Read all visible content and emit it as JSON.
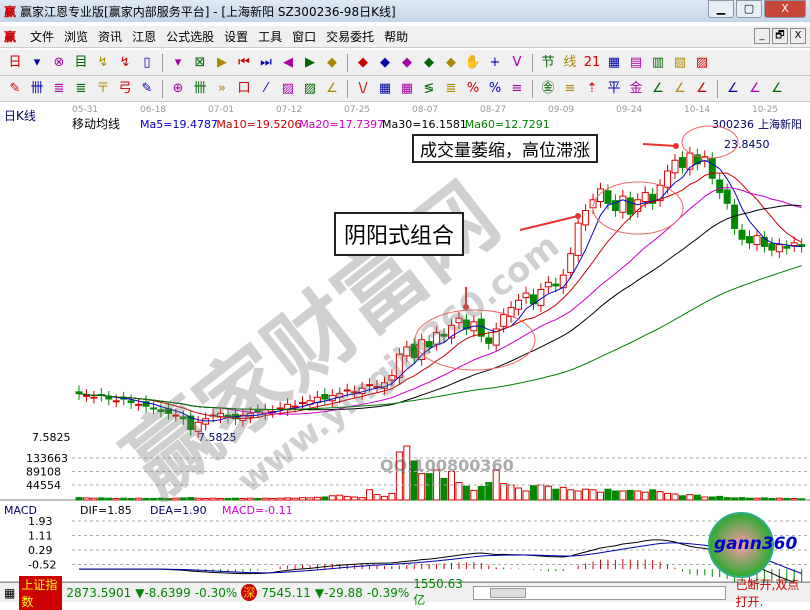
{
  "window": {
    "title": "赢家江恩专业版[赢家内部服务平台] - [上海新阳  SZ300236-98日K线]",
    "logo": "赢",
    "min": "▁",
    "max": "▢",
    "close": "X"
  },
  "menu": [
    "文件",
    "浏览",
    "资讯",
    "江恩",
    "公式选股",
    "设置",
    "工具",
    "窗口",
    "交易委托",
    "帮助"
  ],
  "mdi": [
    "_",
    "🗗",
    "X"
  ],
  "toolbar1": [
    "日",
    "▾",
    "⊗",
    "目",
    "↯",
    "↯",
    "▯",
    "▾",
    "⊠",
    "▶",
    "⏮",
    "⏭",
    "◀",
    "▶",
    "◆",
    "◆",
    "◆",
    "◆",
    "◆",
    "◆",
    "✋",
    "+",
    "V",
    "节",
    "线",
    "21",
    "▦",
    "▤",
    "▥",
    "▧",
    "▨"
  ],
  "toolbar2": [
    "✎",
    "卌",
    "≣",
    "≣",
    "〒",
    "弓",
    "✎",
    "⊕",
    "卌",
    "»",
    "口",
    "⁄",
    "▨",
    "▨",
    "∠",
    "\\/",
    "▦",
    "▦",
    "≶",
    "≣",
    "%",
    "%",
    "≡",
    "㊎",
    "≡",
    "⇡",
    "平",
    "金",
    "∠",
    "∠",
    "∠",
    "∠",
    "∠",
    "∠"
  ],
  "chart": {
    "panel_label": "日K线",
    "indicator": "移动均线",
    "dates": [
      "05-31",
      "06-18",
      "07-01",
      "07-12",
      "07-25",
      "08-07",
      "08-27",
      "09-09",
      "09-24",
      "10-14",
      "10-25"
    ],
    "ma": [
      {
        "label": "Ma5=19.4787",
        "color": "#0000cc"
      },
      {
        "label": "Ma10=19.5206",
        "color": "#cc0000"
      },
      {
        "label": "Ma20=17.7397",
        "color": "#cc00cc"
      },
      {
        "label": "Ma30=16.1581",
        "color": "#000000"
      },
      {
        "label": "Ma60=12.7291",
        "color": "#008000"
      }
    ],
    "code": "300236",
    "name": "上海新阳",
    "high_label": "23.8450",
    "low_label": "7.5825",
    "axis_price": "7.5825",
    "vol_ticks": [
      "133663",
      "89108",
      "44554"
    ],
    "macd": {
      "label": "MACD",
      "dif": "DIF=1.85",
      "dea": "DEA=1.90",
      "macd": "MACD=-0.11",
      "ticks": [
        "1.93",
        "1.11",
        "0.29",
        "-0.52"
      ]
    },
    "annotations": [
      "成交量萎缩，高位滞涨",
      "阴阳式组合"
    ],
    "watermarks": [
      "赢家财富网",
      "www.yingjia360.com",
      "QQ:100800360",
      "gann360"
    ]
  },
  "chart_data": {
    "type": "candlestick",
    "ylim": [
      7.5825,
      23.845
    ],
    "closes": [
      10.0,
      9.9,
      9.8,
      9.9,
      9.7,
      9.6,
      9.7,
      9.5,
      9.4,
      9.3,
      9.2,
      9.0,
      8.9,
      8.8,
      8.6,
      8.0,
      8.4,
      8.6,
      8.8,
      8.9,
      8.7,
      8.6,
      8.8,
      8.9,
      9.0,
      9.1,
      9.0,
      9.2,
      9.4,
      9.3,
      9.5,
      9.6,
      9.8,
      9.7,
      9.9,
      10.0,
      10.2,
      10.1,
      10.3,
      10.5,
      10.4,
      10.6,
      11.0,
      12.2,
      12.6,
      12.0,
      13.0,
      12.6,
      13.4,
      13.2,
      13.8,
      14.2,
      13.6,
      14.0,
      13.2,
      12.8,
      13.6,
      14.4,
      14.8,
      15.2,
      15.6,
      15.0,
      15.8,
      16.2,
      16.0,
      16.6,
      17.8,
      19.5,
      20.2,
      20.8,
      21.4,
      20.6,
      20.2,
      21.0,
      20.0,
      20.8,
      21.2,
      20.6,
      21.6,
      22.4,
      23.0,
      22.6,
      23.4,
      22.8,
      23.2,
      22.0,
      21.2,
      20.6,
      19.2,
      18.6,
      18.4,
      18.8,
      18.2,
      18.0,
      18.3,
      18.1,
      18.4,
      18.2
    ],
    "volumes": [
      8,
      7,
      6,
      7,
      6,
      5,
      6,
      5,
      6,
      5,
      5,
      6,
      5,
      6,
      7,
      8,
      6,
      5,
      6,
      5,
      5,
      6,
      5,
      6,
      5,
      6,
      5,
      6,
      7,
      6,
      8,
      7,
      9,
      10,
      14,
      16,
      12,
      10,
      8,
      34,
      18,
      12,
      22,
      160,
      180,
      130,
      88,
      88,
      100,
      72,
      95,
      58,
      46,
      32,
      45,
      58,
      100,
      55,
      50,
      40,
      30,
      48,
      50,
      46,
      36,
      42,
      34,
      30,
      36,
      34,
      26,
      36,
      30,
      30,
      32,
      30,
      26,
      34,
      28,
      22,
      20,
      14,
      18,
      16,
      10,
      10,
      12,
      8,
      7,
      8,
      6,
      6,
      7,
      5,
      6,
      5,
      5,
      4
    ],
    "vol_ticks": [
      44554,
      89108,
      133663
    ],
    "macd_ticks": [
      -0.52,
      0.29,
      1.11,
      1.93
    ]
  },
  "status": {
    "index_name": "上证指数",
    "sh": "2873.5901",
    "sh_chg": "▼-8.6399",
    "sh_pct": "-0.30%",
    "sz_icon": "深",
    "sz": "7545.11",
    "sz_chg": "▼-29.88",
    "sz_pct": "-0.39%",
    "amount": "1550.63亿",
    "conn": "已断开,双点打开."
  }
}
